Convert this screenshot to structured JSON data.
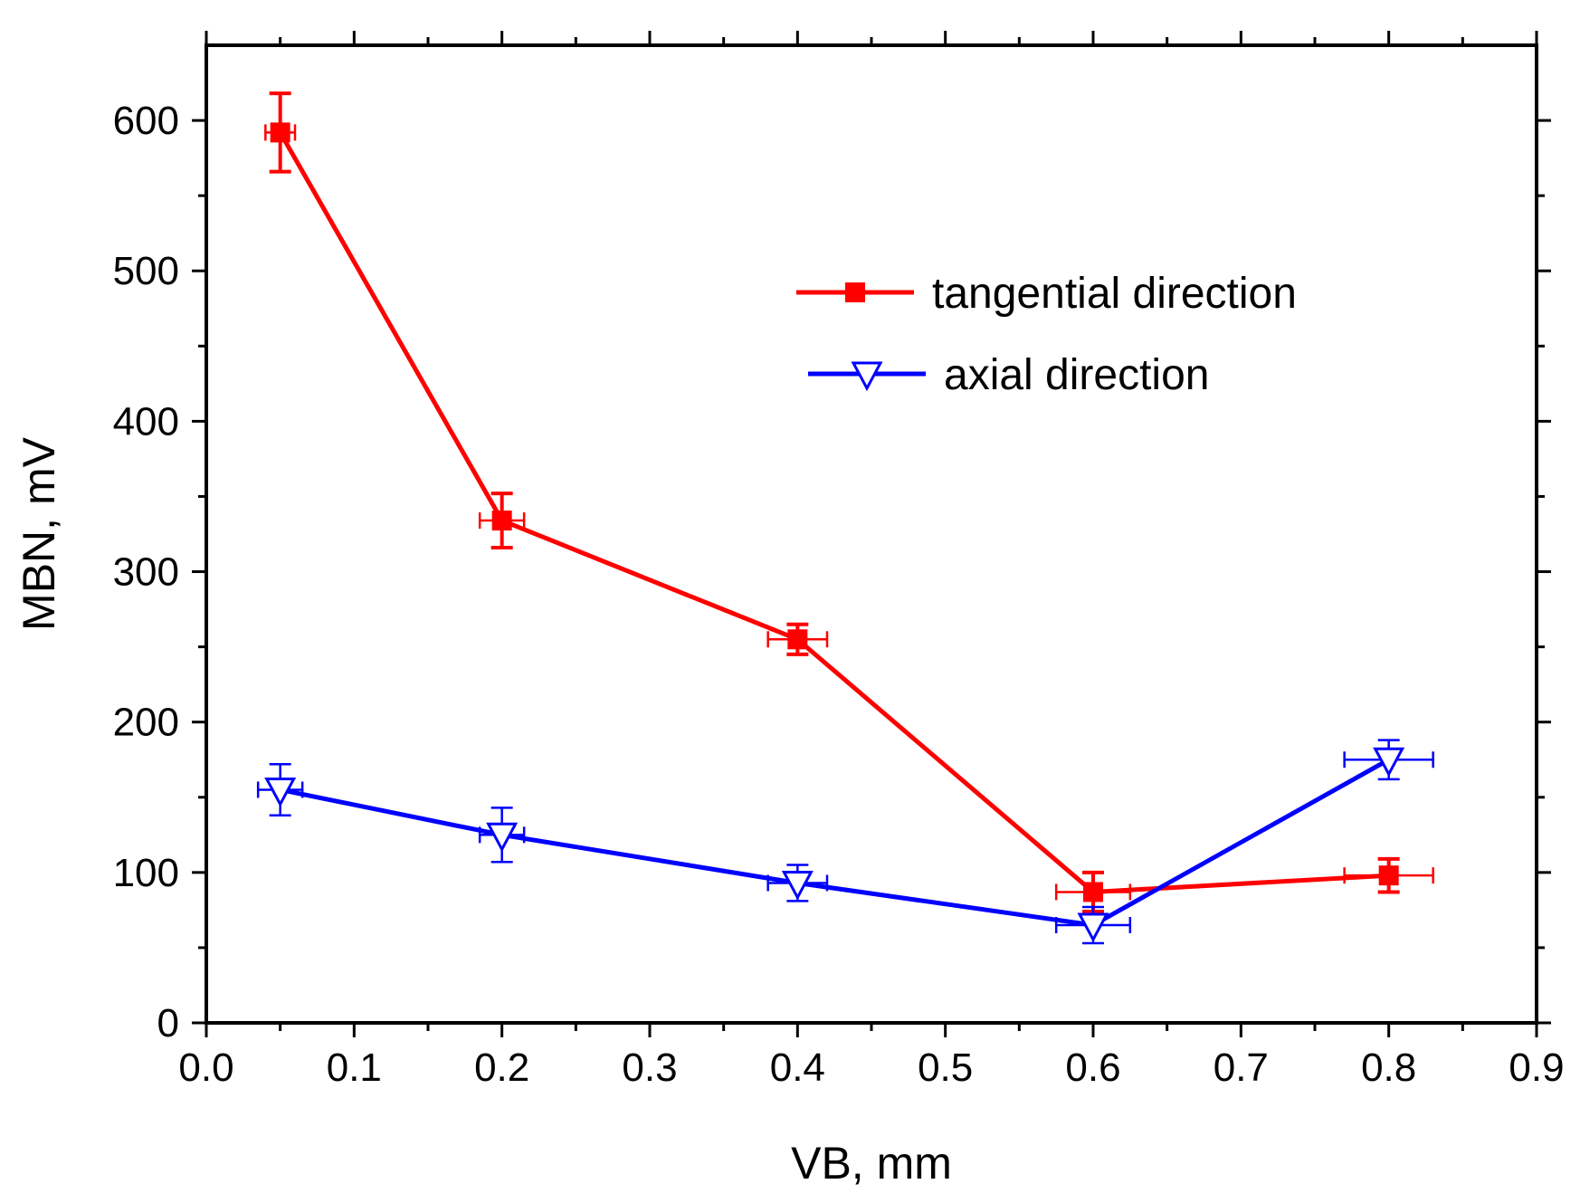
{
  "chart_data": {
    "type": "line",
    "title": "",
    "xlabel": "VB, mm",
    "ylabel": "MBN, mV",
    "xlim": [
      0.0,
      0.9
    ],
    "ylim": [
      0,
      650
    ],
    "xticks": [
      "0.0",
      "0.1",
      "0.2",
      "0.3",
      "0.4",
      "0.5",
      "0.6",
      "0.7",
      "0.8",
      "0.9"
    ],
    "yticks": [
      "0",
      "100",
      "200",
      "300",
      "400",
      "500",
      "600"
    ],
    "legend_position": "top-right",
    "series": [
      {
        "name": "tangential direction",
        "color": "#ff0000",
        "marker": "filled-square",
        "x": [
          0.05,
          0.2,
          0.4,
          0.6,
          0.8
        ],
        "y": [
          592,
          334,
          255,
          87,
          98
        ],
        "yerr": [
          26,
          18,
          10,
          13,
          11
        ],
        "xerr": [
          0.01,
          0.015,
          0.02,
          0.025,
          0.03
        ]
      },
      {
        "name": "axial direction",
        "color": "#0000ff",
        "marker": "open-down-triangle",
        "x": [
          0.05,
          0.2,
          0.4,
          0.6,
          0.8
        ],
        "y": [
          155,
          125,
          93,
          65,
          175
        ],
        "yerr": [
          17,
          18,
          12,
          12,
          13
        ],
        "xerr": [
          0.015,
          0.015,
          0.02,
          0.025,
          0.03
        ]
      }
    ]
  }
}
